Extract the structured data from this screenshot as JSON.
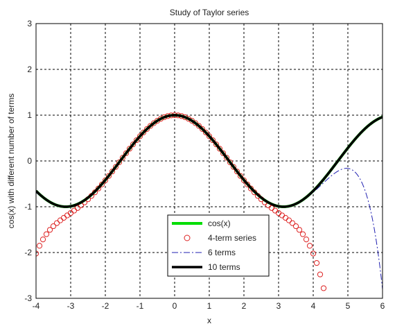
{
  "chart_data": {
    "type": "line",
    "title": "Study of Taylor series",
    "xlabel": "x",
    "ylabel": "cos(x) with different number of terms",
    "xlim": [
      -4,
      6
    ],
    "ylim": [
      -3,
      3
    ],
    "x_ticks": [
      -4,
      -3,
      -2,
      -1,
      0,
      1,
      2,
      3,
      4,
      5,
      6
    ],
    "y_ticks": [
      -3,
      -2,
      -1,
      0,
      1,
      2,
      3
    ],
    "x_tick_labels": [
      "-4",
      "-3",
      "-2",
      "-1",
      "0",
      "1",
      "2",
      "3",
      "4",
      "5",
      "6"
    ],
    "y_tick_labels": [
      "-3",
      "-2",
      "-1",
      "0",
      "1",
      "2",
      "3"
    ],
    "grid": true,
    "legend_position": "bottom-center",
    "series": [
      {
        "name": "cos(x)",
        "style": "solid",
        "color": "#00dd00",
        "function": "cos(x)"
      },
      {
        "name": "4-term series",
        "style": "circles",
        "color": "#dd2222",
        "terms": 4
      },
      {
        "name": "6 terms",
        "style": "dash-dot",
        "color": "#1f1fb0",
        "terms": 6
      },
      {
        "name": "10 terms",
        "style": "solid",
        "color": "#000000",
        "terms": 10
      }
    ]
  }
}
